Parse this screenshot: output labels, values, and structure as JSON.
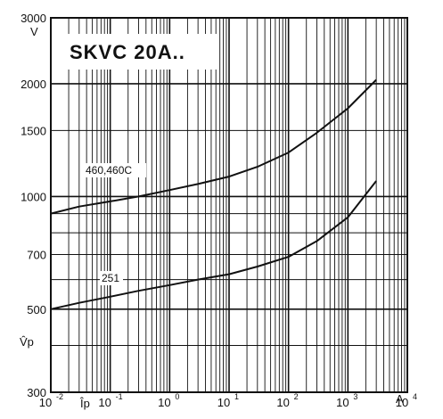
{
  "chart_data": {
    "type": "line",
    "title": "SKVC 20A..",
    "y_unit_label": "V",
    "y_axis_symbol": "V̂p",
    "x_axis_symbol": "Îp",
    "x_unit_label": "A",
    "x_scale": "log",
    "y_scale": "log",
    "xlim": [
      0.01,
      10000
    ],
    "ylim": [
      300,
      3000
    ],
    "grid": true,
    "y_ticks": [
      {
        "value": 3000,
        "label": "3000"
      },
      {
        "value": 2000,
        "label": "2000"
      },
      {
        "value": 1500,
        "label": "1500"
      },
      {
        "value": 1000,
        "label": "1000"
      },
      {
        "value": 700,
        "label": "700"
      },
      {
        "value": 500,
        "label": "500"
      },
      {
        "value": 300,
        "label": "300"
      }
    ],
    "x_ticks": [
      {
        "value": 0.01,
        "base": "10",
        "exp": "-2"
      },
      {
        "value": 0.1,
        "base": "10",
        "exp": "-1"
      },
      {
        "value": 1,
        "base": "10",
        "exp": "0"
      },
      {
        "value": 10,
        "base": "10",
        "exp": "1"
      },
      {
        "value": 100,
        "base": "10",
        "exp": "2"
      },
      {
        "value": 1000,
        "base": "10",
        "exp": "3"
      },
      {
        "value": 10000,
        "base": "10",
        "exp": "4"
      }
    ],
    "series": [
      {
        "name": "460,460C",
        "x": [
          0.01,
          0.03,
          0.1,
          0.3,
          1,
          3,
          10,
          30,
          100,
          300,
          1000,
          3000
        ],
        "y": [
          900,
          940,
          970,
          1000,
          1040,
          1080,
          1130,
          1200,
          1310,
          1480,
          1720,
          2050
        ]
      },
      {
        "name": "251",
        "x": [
          0.01,
          0.03,
          0.1,
          0.3,
          1,
          3,
          10,
          30,
          100,
          300,
          1000,
          3000
        ],
        "y": [
          500,
          520,
          540,
          560,
          580,
          600,
          620,
          650,
          690,
          760,
          880,
          1100
        ]
      }
    ]
  }
}
